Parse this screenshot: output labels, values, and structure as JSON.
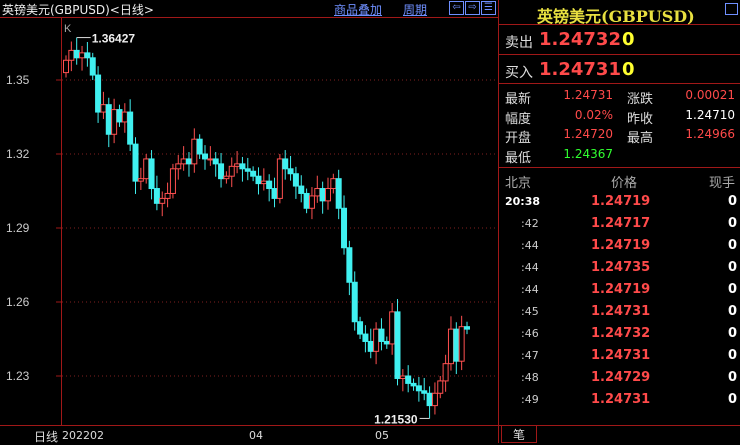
{
  "header": {
    "title": "英镑美元(GBPUSD)<日线>",
    "overlay_link": "商品叠加",
    "period_link": "周期"
  },
  "chart": {
    "type_label": "K",
    "high_label": "1.36427",
    "low_label": "1.21530",
    "y_ticks": [
      "1.35",
      "1.32",
      "1.29",
      "1.26",
      "1.23"
    ],
    "x_labels": [
      "202202",
      "04",
      "05"
    ],
    "period_label": "日线",
    "up_color": "#ff5050",
    "down_color": "#40f0f0"
  },
  "chart_data": {
    "type": "candlestick",
    "ylim": [
      1.211,
      1.372
    ],
    "first_open": 1.353,
    "closes": [
      1.358,
      1.362,
      1.359,
      1.361,
      1.359,
      1.352,
      1.337,
      1.34,
      1.328,
      1.338,
      1.333,
      1.337,
      1.324,
      1.309,
      1.31,
      1.318,
      1.306,
      1.3,
      1.302,
      1.304,
      1.314,
      1.316,
      1.318,
      1.316,
      1.326,
      1.32,
      1.318,
      1.318,
      1.316,
      1.31,
      1.311,
      1.315,
      1.316,
      1.314,
      1.313,
      1.311,
      1.308,
      1.309,
      1.306,
      1.302,
      1.318,
      1.314,
      1.312,
      1.307,
      1.304,
      1.298,
      1.303,
      1.306,
      1.301,
      1.306,
      1.31,
      1.298,
      1.282,
      1.268,
      1.252,
      1.247,
      1.244,
      1.24,
      1.249,
      1.244,
      1.243,
      1.256,
      1.229,
      1.23,
      1.227,
      1.226,
      1.224,
      1.223,
      1.218,
      1.223,
      1.228,
      1.235,
      1.249,
      1.236,
      1.25,
      1.249
    ]
  },
  "quote": {
    "name": "英镑美元(GBPUSD)",
    "sell_label": "卖出",
    "sell_price": "1.24732",
    "sell_vol": "0",
    "buy_label": "买入",
    "buy_price": "1.24731",
    "buy_vol": "0",
    "stats": [
      {
        "l1": "最新",
        "v1": "1.24731",
        "c1": "red",
        "l2": "涨跌",
        "v2": "0.00021",
        "c2": "red"
      },
      {
        "l1": "幅度",
        "v1": "0.02%",
        "c1": "red",
        "l2": "昨收",
        "v2": "1.24710",
        "c2": "wht"
      },
      {
        "l1": "开盘",
        "v1": "1.24720",
        "c1": "red",
        "l2": "最高",
        "v2": "1.24966",
        "c2": "red"
      },
      {
        "l1": "最低",
        "v1": "1.24367",
        "c1": "grn",
        "l2": "",
        "v2": "",
        "c2": "red"
      }
    ]
  },
  "ticks": {
    "headers": [
      "北京",
      "价格",
      "现手"
    ],
    "rows": [
      [
        "20:38",
        "1.24719",
        "0"
      ],
      [
        ":42",
        "1.24717",
        "0"
      ],
      [
        ":44",
        "1.24719",
        "0"
      ],
      [
        ":44",
        "1.24735",
        "0"
      ],
      [
        ":44",
        "1.24719",
        "0"
      ],
      [
        ":45",
        "1.24731",
        "0"
      ],
      [
        ":46",
        "1.24732",
        "0"
      ],
      [
        ":47",
        "1.24731",
        "0"
      ],
      [
        ":48",
        "1.24729",
        "0"
      ],
      [
        ":49",
        "1.24731",
        "0"
      ]
    ],
    "tab": "笔"
  }
}
